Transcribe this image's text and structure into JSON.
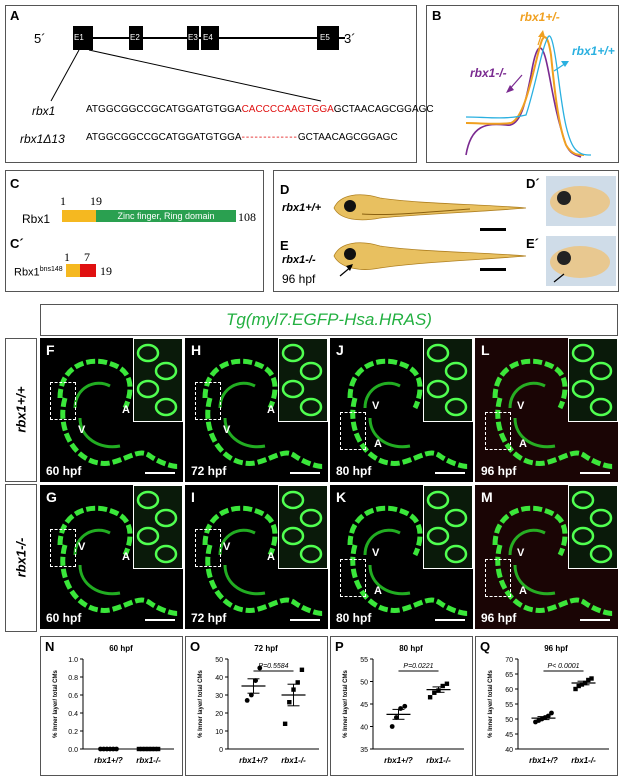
{
  "panels": {
    "A": {
      "label": "A",
      "five": "5´",
      "three": "3´",
      "exons": [
        "E1",
        "E2",
        "E3",
        "E4",
        "E5"
      ],
      "wt_name": "rbx1",
      "mut_name": "rbx1Δ13",
      "wt_seq_a": "ATGGCGGCCGCATGGATGTGGA",
      "wt_seq_del": "CACCCCAAGTGGA",
      "wt_seq_b": "GCTAACAGCGGAGC",
      "mut_seq_a": "ATGGCGGCCGCATGGATGTGGA",
      "mut_seq_del": "-------------",
      "mut_seq_b": "GCTAACAGCGGAGC"
    },
    "B": {
      "label": "B",
      "het": "rbx1+/-",
      "wt": "rbx1+/+",
      "mut": "rbx1-/-",
      "colors": {
        "het": "#f0a020",
        "wt": "#2ab0e0",
        "mut": "#7a2a90"
      }
    },
    "C": {
      "label": "C",
      "protein": "Rbx1",
      "start": "1",
      "mid": "19",
      "end": "108",
      "domain": "Zinc finger, Ring domain"
    },
    "C2": {
      "label": "C´",
      "protein": "Rbx1",
      "sup": "bns148",
      "start": "1",
      "mid": "7",
      "end": "19"
    },
    "D": {
      "label": "D",
      "label2": "D´",
      "genotype": "rbx1+/+"
    },
    "E": {
      "label": "E",
      "label2": "E´",
      "genotype": "rbx1-/-",
      "stage": "96 hpf"
    },
    "tg_title": "Tg(myl7:EGFP-Hsa.HRAS)",
    "row_wt": "rbx1+/+",
    "row_mut": "rbx1-/-",
    "micro": [
      {
        "label": "F",
        "stage": "60 hpf"
      },
      {
        "label": "H",
        "stage": "72 hpf"
      },
      {
        "label": "J",
        "stage": "80 hpf"
      },
      {
        "label": "L",
        "stage": "96 hpf"
      },
      {
        "label": "G",
        "stage": "60 hpf"
      },
      {
        "label": "I",
        "stage": "72 hpf"
      },
      {
        "label": "K",
        "stage": "80 hpf"
      },
      {
        "label": "M",
        "stage": "96 hpf"
      }
    ],
    "chamber_v": "V",
    "chamber_a": "A"
  },
  "chart_data": [
    {
      "type": "scatter",
      "label": "N",
      "title": "60 hpf",
      "ylabel": "% Inner layer/ total CMs",
      "categories": [
        "rbx1+/?",
        "rbx1-/-"
      ],
      "ylim": [
        0,
        1.0
      ],
      "yticks": [
        "0.0",
        "0.2",
        "0.4",
        "0.6",
        "0.8",
        "1.0"
      ],
      "pvalue": "",
      "series": [
        {
          "values": [
            0,
            0,
            0,
            0,
            0,
            0
          ]
        },
        {
          "values": [
            0,
            0,
            0,
            0,
            0,
            0,
            0
          ]
        }
      ]
    },
    {
      "type": "scatter",
      "label": "O",
      "title": "72 hpf",
      "ylabel": "% Inner layer/ total CMs",
      "categories": [
        "rbx1+/?",
        "rbx1-/-"
      ],
      "ylim": [
        0,
        50
      ],
      "yticks": [
        "0",
        "10",
        "20",
        "30",
        "40",
        "50"
      ],
      "pvalue": "P=0.5584",
      "series": [
        {
          "values": [
            27,
            30,
            38,
            45
          ],
          "mean": 35,
          "sem": 4
        },
        {
          "values": [
            14,
            26,
            33,
            37,
            44
          ],
          "mean": 30,
          "sem": 6
        }
      ]
    },
    {
      "type": "scatter",
      "label": "P",
      "title": "80 hpf",
      "ylabel": "% Inner layer/ total CMs",
      "categories": [
        "rbx1+/?",
        "rbx1-/-"
      ],
      "ylim": [
        35,
        55
      ],
      "yticks": [
        "35",
        "40",
        "45",
        "50",
        "55"
      ],
      "pvalue": "P=0.0221",
      "series": [
        {
          "values": [
            40,
            42,
            44,
            44.5
          ],
          "mean": 42.7,
          "sem": 1.1
        },
        {
          "values": [
            46.5,
            47.5,
            48,
            49,
            49.5
          ],
          "mean": 48.2,
          "sem": 0.6
        }
      ]
    },
    {
      "type": "scatter",
      "label": "Q",
      "title": "96 hpf",
      "ylabel": "% Inner layer/ total CMs",
      "categories": [
        "rbx1+/?",
        "rbx1-/-"
      ],
      "ylim": [
        40,
        70
      ],
      "yticks": [
        "40",
        "45",
        "50",
        "55",
        "60",
        "65",
        "70"
      ],
      "pvalue": "P< 0.0001",
      "series": [
        {
          "values": [
            49,
            49.5,
            50,
            50.5,
            51,
            52
          ],
          "mean": 50.3,
          "sem": 0.5
        },
        {
          "values": [
            60,
            61,
            61.5,
            62,
            63,
            63.5
          ],
          "mean": 62,
          "sem": 0.6
        }
      ]
    }
  ]
}
